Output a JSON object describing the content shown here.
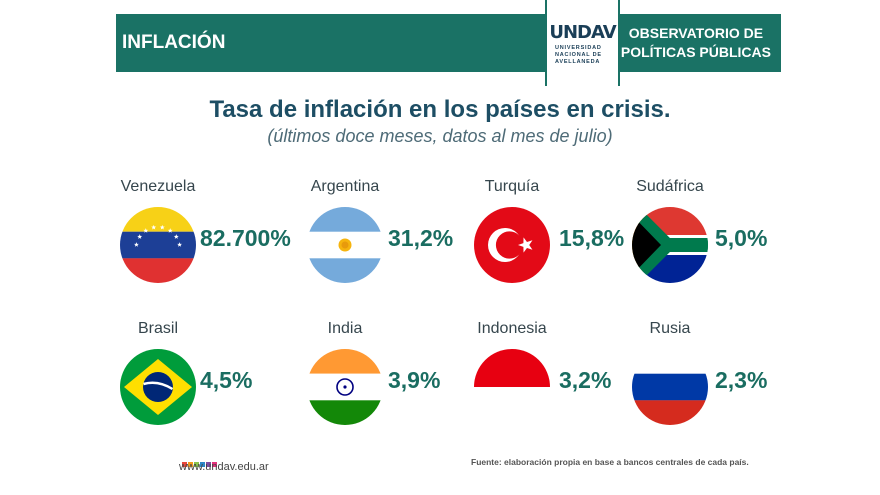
{
  "header": {
    "section": "INFLACIÓN",
    "logo_text": "UNDAV",
    "logo_subtext": "UNIVERSIDAD NACIONAL DE AVELLANEDA",
    "observatory_line1": "OBSERVATORIO DE",
    "observatory_line2": "POLÍTICAS PÚBLICAS",
    "color": "#1a7265"
  },
  "title": "Tasa de inflación en los países en crisis.",
  "subtitle": "(últimos doce meses, datos al mes de julio)",
  "chart_data": {
    "type": "table",
    "title": "Tasa de inflación en los países en crisis.",
    "subtitle": "(últimos doce meses, datos al mes de julio)",
    "categories": [
      "Venezuela",
      "Argentina",
      "Turquía",
      "Sudáfrica",
      "Brasil",
      "India",
      "Indonesia",
      "Rusia"
    ],
    "values": [
      82700,
      31.2,
      15.8,
      5.0,
      4.5,
      3.9,
      3.2,
      2.3
    ],
    "labels": [
      "82.700%",
      "31,2%",
      "15,8%",
      "5,0%",
      "4,5%",
      "3,9%",
      "3,2%",
      "2,3%"
    ],
    "flags": [
      "venezuela-flag",
      "argentina-flag",
      "turkey-flag",
      "south-africa-flag",
      "brazil-flag",
      "india-flag",
      "indonesia-flag",
      "russia-flag"
    ]
  },
  "footer": {
    "website": "www.undav.edu.ar",
    "source": "Fuente: elaboración propia en base a bancos centrales de cada país.",
    "dot_colors": [
      "#e8463c",
      "#f49a1b",
      "#8bc34a",
      "#2b87c8",
      "#7b4aa0",
      "#e3317b"
    ]
  }
}
